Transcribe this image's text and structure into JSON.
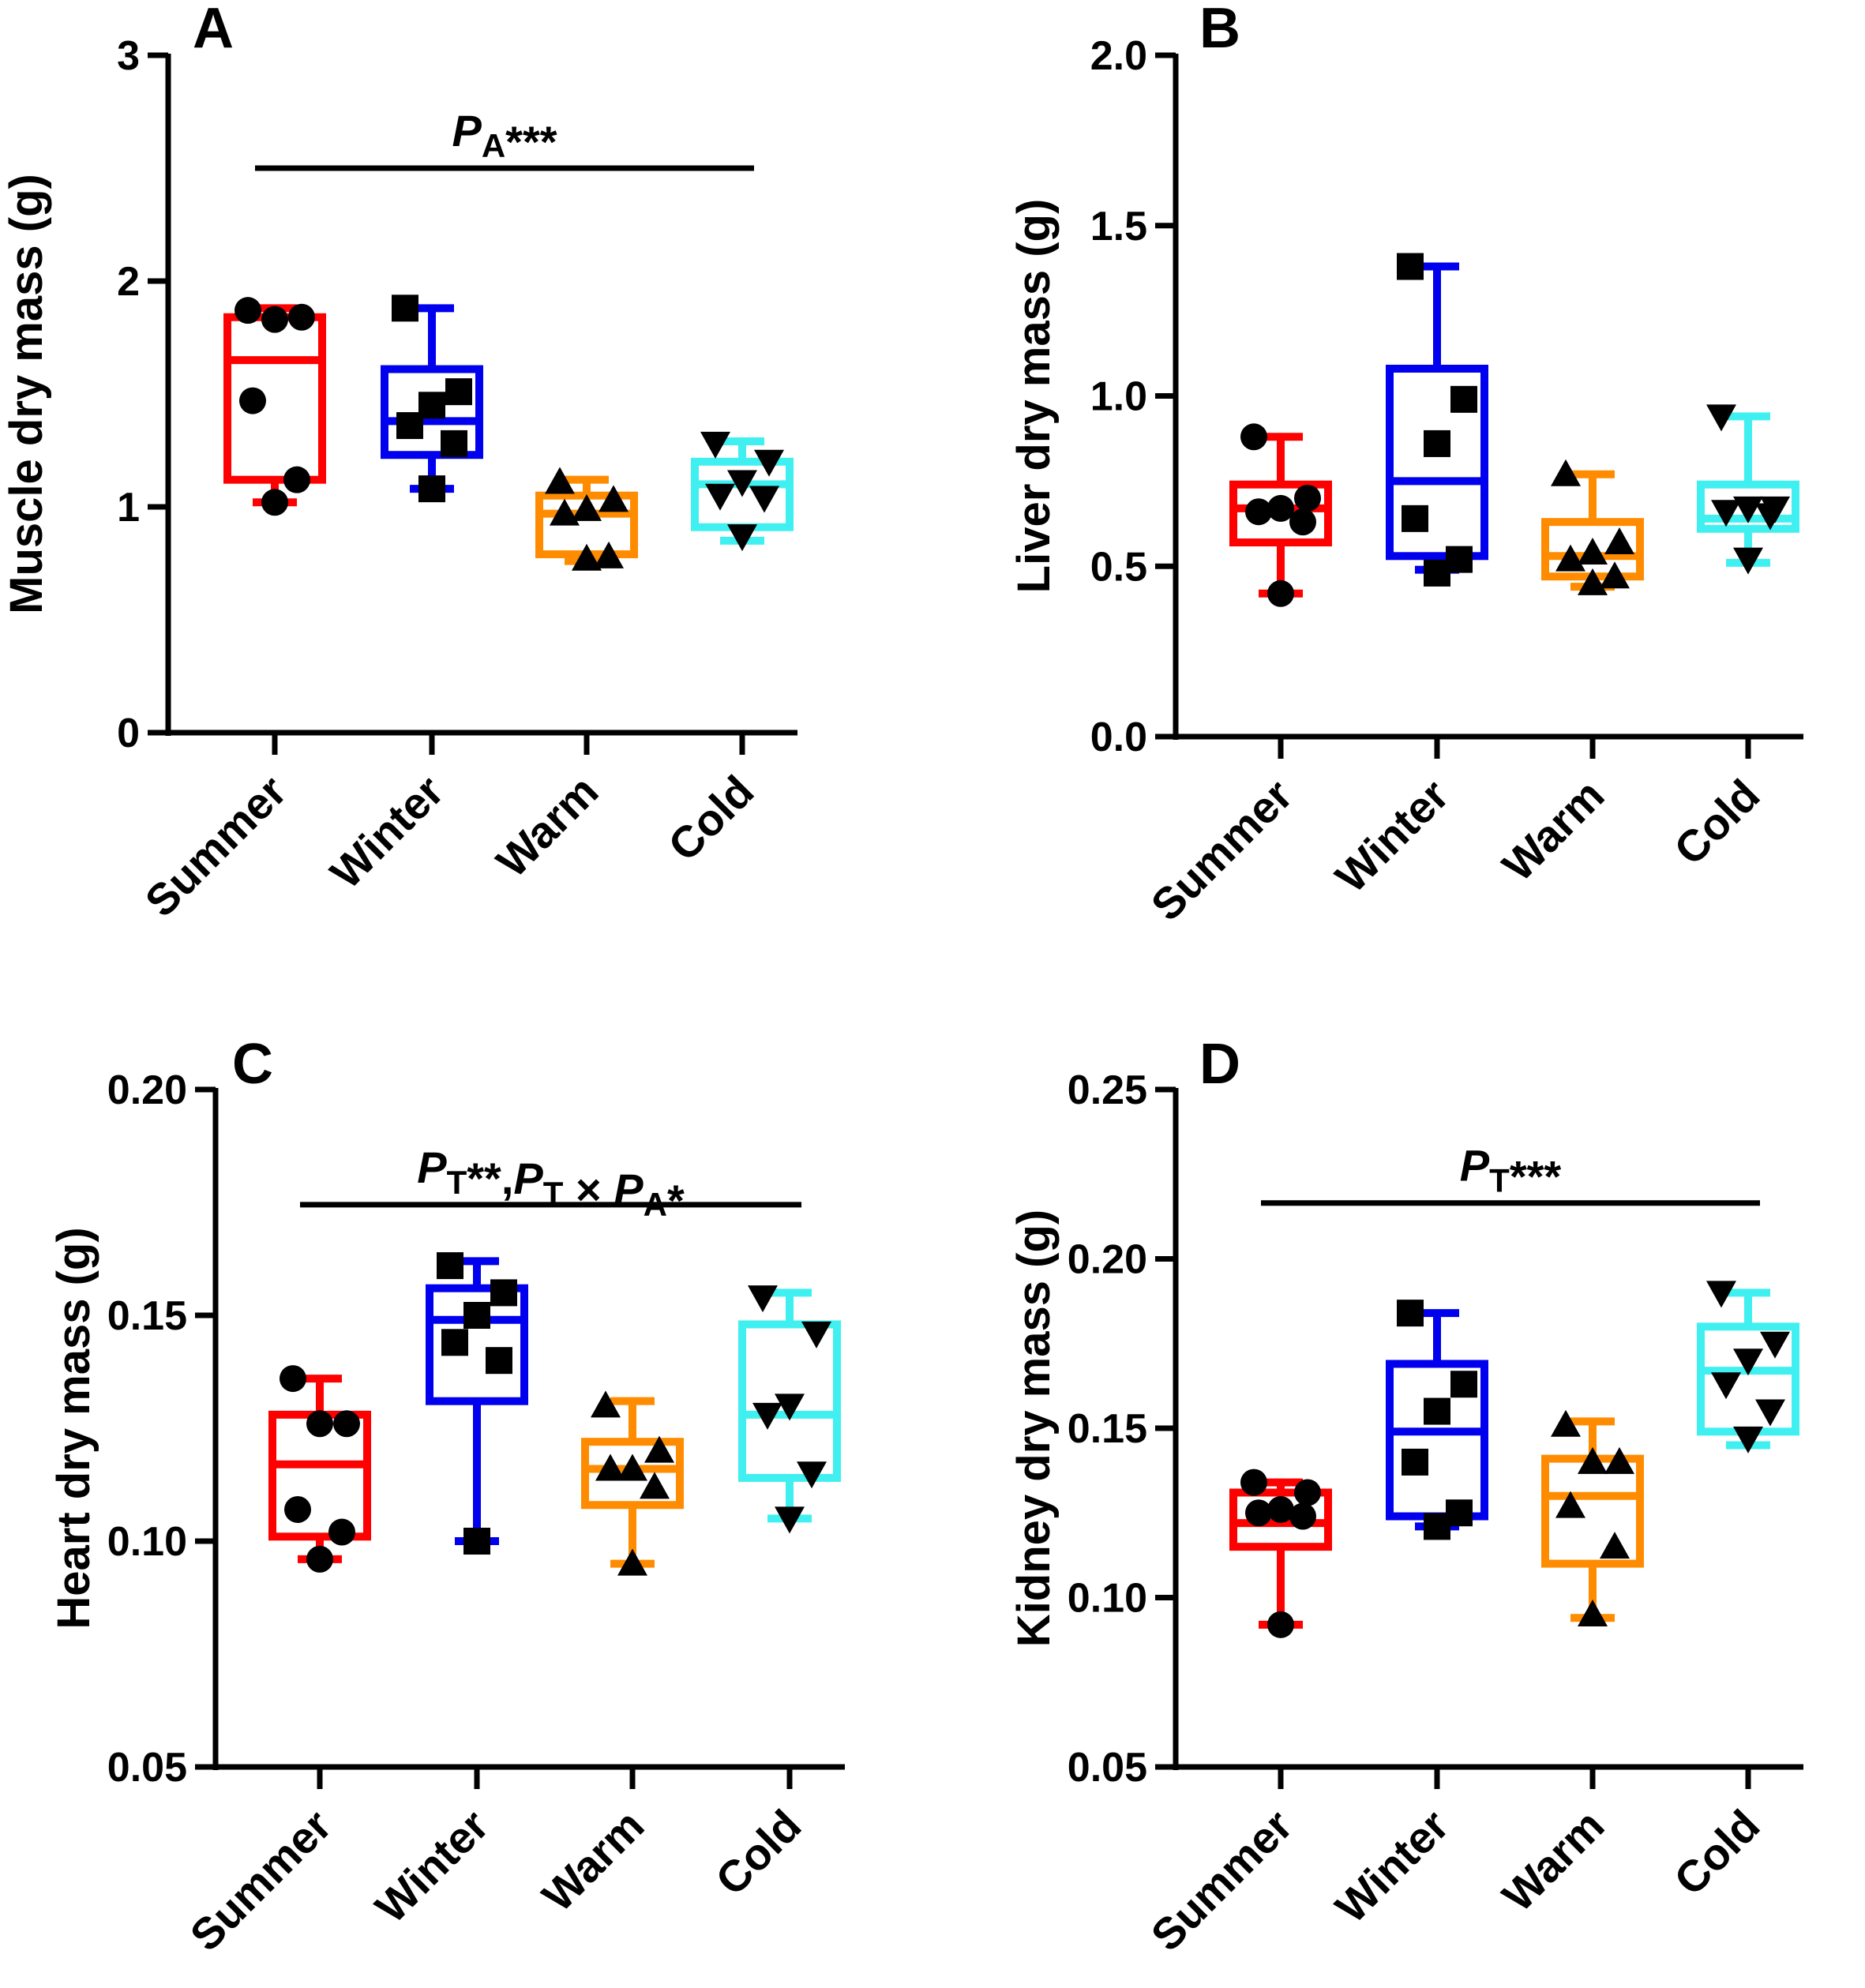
{
  "figure": {
    "categories": [
      "Summer",
      "Winter",
      "Warm",
      "Cold"
    ],
    "colors": {
      "Summer": "#ff0000",
      "Winter": "#0000ee",
      "Warm": "#ff8c00",
      "Cold": "#40f0f0"
    },
    "markers": {
      "Summer": "circle",
      "Winter": "square",
      "Warm": "triangle-up",
      "Cold": "triangle-down"
    }
  },
  "chart_data": [
    {
      "type": "box",
      "panel": "A",
      "ylabel": "Muscle dry mass (g)",
      "ylim": [
        0,
        3
      ],
      "yticks": [
        "0",
        "1",
        "2",
        "3"
      ],
      "categories": [
        "Summer",
        "Winter",
        "Warm",
        "Cold"
      ],
      "annotation": {
        "text": "P",
        "sub": "A",
        "stars": "***",
        "span": [
          "Summer",
          "Cold"
        ],
        "y": 2.5
      },
      "series": [
        {
          "name": "Summer",
          "min": 1.02,
          "q1": 1.12,
          "median": 1.65,
          "q3": 1.84,
          "max": 1.88,
          "points": [
            1.87,
            1.84,
            1.83,
            1.47,
            1.12,
            1.02
          ]
        },
        {
          "name": "Winter",
          "min": 1.08,
          "q1": 1.23,
          "median": 1.38,
          "q3": 1.61,
          "max": 1.88,
          "points": [
            1.88,
            1.51,
            1.45,
            1.36,
            1.28,
            1.08
          ]
        },
        {
          "name": "Warm",
          "min": 0.76,
          "q1": 0.79,
          "median": 0.97,
          "q3": 1.05,
          "max": 1.12,
          "points": [
            1.11,
            1.03,
            0.99,
            0.97,
            0.78,
            0.77
          ]
        },
        {
          "name": "Cold",
          "min": 0.85,
          "q1": 0.91,
          "median": 1.1,
          "q3": 1.2,
          "max": 1.29,
          "points": [
            1.28,
            1.2,
            1.11,
            1.05,
            1.04,
            0.87
          ]
        }
      ]
    },
    {
      "type": "box",
      "panel": "B",
      "ylabel": "Liver dry mass (g)",
      "ylim": [
        0,
        2
      ],
      "yticks": [
        "0.0",
        "0.5",
        "1.0",
        "1.5",
        "2.0"
      ],
      "categories": [
        "Summer",
        "Winter",
        "Warm",
        "Cold"
      ],
      "annotation": null,
      "series": [
        {
          "name": "Summer",
          "min": 0.42,
          "q1": 0.57,
          "median": 0.67,
          "q3": 0.74,
          "max": 0.88,
          "points": [
            0.88,
            0.7,
            0.67,
            0.66,
            0.63,
            0.42
          ]
        },
        {
          "name": "Winter",
          "min": 0.49,
          "q1": 0.53,
          "median": 0.75,
          "q3": 1.08,
          "max": 1.38,
          "points": [
            1.38,
            0.99,
            0.86,
            0.64,
            0.52,
            0.48
          ]
        },
        {
          "name": "Warm",
          "min": 0.44,
          "q1": 0.47,
          "median": 0.53,
          "q3": 0.63,
          "max": 0.77,
          "points": [
            0.77,
            0.57,
            0.54,
            0.52,
            0.47,
            0.45
          ]
        },
        {
          "name": "Cold",
          "min": 0.51,
          "q1": 0.61,
          "median": 0.64,
          "q3": 0.74,
          "max": 0.94,
          "points": [
            0.94,
            0.67,
            0.67,
            0.66,
            0.65,
            0.52
          ]
        }
      ]
    },
    {
      "type": "box",
      "panel": "C",
      "ylabel": "Heart dry mass (g)",
      "ylim": [
        0.05,
        0.2
      ],
      "yticks": [
        "0.05",
        "0.10",
        "0.15",
        "0.20"
      ],
      "categories": [
        "Summer",
        "Winter",
        "Warm",
        "Cold"
      ],
      "annotation": {
        "text": "P",
        "sub": "T",
        "stars": "**",
        "extra": ",P_T × P_A*",
        "span": [
          "Summer",
          "Cold"
        ],
        "y": 0.1745
      },
      "series": [
        {
          "name": "Summer",
          "min": 0.096,
          "q1": 0.101,
          "median": 0.117,
          "q3": 0.128,
          "max": 0.136,
          "points": [
            0.136,
            0.126,
            0.126,
            0.107,
            0.102,
            0.096
          ]
        },
        {
          "name": "Winter",
          "min": 0.1,
          "q1": 0.131,
          "median": 0.149,
          "q3": 0.156,
          "max": 0.162,
          "points": [
            0.161,
            0.155,
            0.15,
            0.144,
            0.14,
            0.1
          ]
        },
        {
          "name": "Warm",
          "min": 0.095,
          "q1": 0.108,
          "median": 0.116,
          "q3": 0.122,
          "max": 0.131,
          "points": [
            0.13,
            0.12,
            0.116,
            0.116,
            0.112,
            0.095
          ]
        },
        {
          "name": "Cold",
          "min": 0.105,
          "q1": 0.114,
          "median": 0.128,
          "q3": 0.148,
          "max": 0.155,
          "points": [
            0.154,
            0.146,
            0.13,
            0.128,
            0.115,
            0.105
          ]
        }
      ]
    },
    {
      "type": "box",
      "panel": "D",
      "ylabel": "Kidney dry mass (g)",
      "ylim": [
        0.05,
        0.25
      ],
      "yticks": [
        "0.05",
        "0.10",
        "0.15",
        "0.20",
        "0.25"
      ],
      "categories": [
        "Summer",
        "Winter",
        "Warm",
        "Cold"
      ],
      "annotation": {
        "text": "P",
        "sub": "T",
        "stars": "***",
        "span": [
          "Summer",
          "Cold"
        ],
        "y": 0.2165
      },
      "series": [
        {
          "name": "Summer",
          "min": 0.092,
          "q1": 0.115,
          "median": 0.122,
          "q3": 0.131,
          "max": 0.134,
          "points": [
            0.134,
            0.131,
            0.126,
            0.125,
            0.124,
            0.092
          ]
        },
        {
          "name": "Winter",
          "min": 0.121,
          "q1": 0.124,
          "median": 0.149,
          "q3": 0.169,
          "max": 0.184,
          "points": [
            0.184,
            0.163,
            0.155,
            0.14,
            0.125,
            0.121
          ]
        },
        {
          "name": "Warm",
          "min": 0.094,
          "q1": 0.11,
          "median": 0.13,
          "q3": 0.141,
          "max": 0.152,
          "points": [
            0.151,
            0.14,
            0.14,
            0.127,
            0.115,
            0.095
          ]
        },
        {
          "name": "Cold",
          "min": 0.145,
          "q1": 0.149,
          "median": 0.167,
          "q3": 0.18,
          "max": 0.19,
          "points": [
            0.19,
            0.175,
            0.17,
            0.163,
            0.155,
            0.147
          ]
        }
      ]
    }
  ]
}
